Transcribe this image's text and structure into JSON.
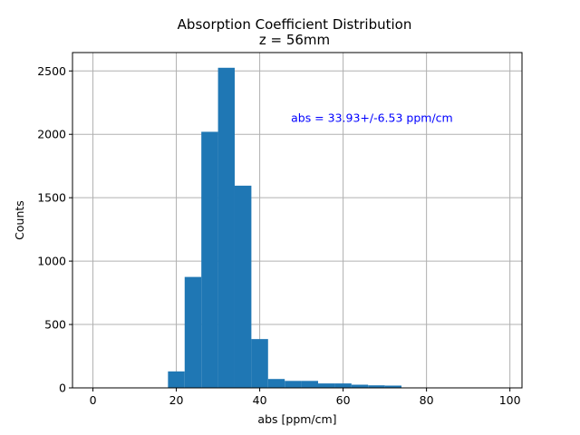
{
  "chart_data": {
    "type": "bar",
    "title": "Absorption Coefficient Distribution",
    "subtitle": "z = 56mm",
    "xlabel": "abs [ppm/cm]",
    "ylabel": "Counts",
    "xlim": [
      -4.9,
      102.9
    ],
    "ylim": [
      0,
      2645
    ],
    "x_ticks": [
      0,
      20,
      40,
      60,
      80,
      100
    ],
    "y_ticks": [
      0,
      500,
      1000,
      1500,
      2000,
      2500
    ],
    "grid": true,
    "bar_color": "#1f77b4",
    "bins": [
      {
        "x0": 18.0,
        "x1": 22.0,
        "count": 130
      },
      {
        "x0": 22.0,
        "x1": 26.0,
        "count": 875
      },
      {
        "x0": 26.0,
        "x1": 30.0,
        "count": 2020
      },
      {
        "x0": 30.0,
        "x1": 34.0,
        "count": 2525
      },
      {
        "x0": 34.0,
        "x1": 38.0,
        "count": 1595
      },
      {
        "x0": 38.0,
        "x1": 42.0,
        "count": 385
      },
      {
        "x0": 42.0,
        "x1": 46.0,
        "count": 70
      },
      {
        "x0": 46.0,
        "x1": 50.0,
        "count": 55
      },
      {
        "x0": 50.0,
        "x1": 54.0,
        "count": 55
      },
      {
        "x0": 54.0,
        "x1": 58.0,
        "count": 35
      },
      {
        "x0": 58.0,
        "x1": 62.0,
        "count": 35
      },
      {
        "x0": 62.0,
        "x1": 66.0,
        "count": 25
      },
      {
        "x0": 66.0,
        "x1": 70.0,
        "count": 20
      },
      {
        "x0": 70.0,
        "x1": 74.0,
        "count": 18
      }
    ],
    "annotation": {
      "text": "abs = 33.93+/-6.53 ppm/cm",
      "color": "#0000ff",
      "x": 47.5,
      "y": 2130
    }
  }
}
